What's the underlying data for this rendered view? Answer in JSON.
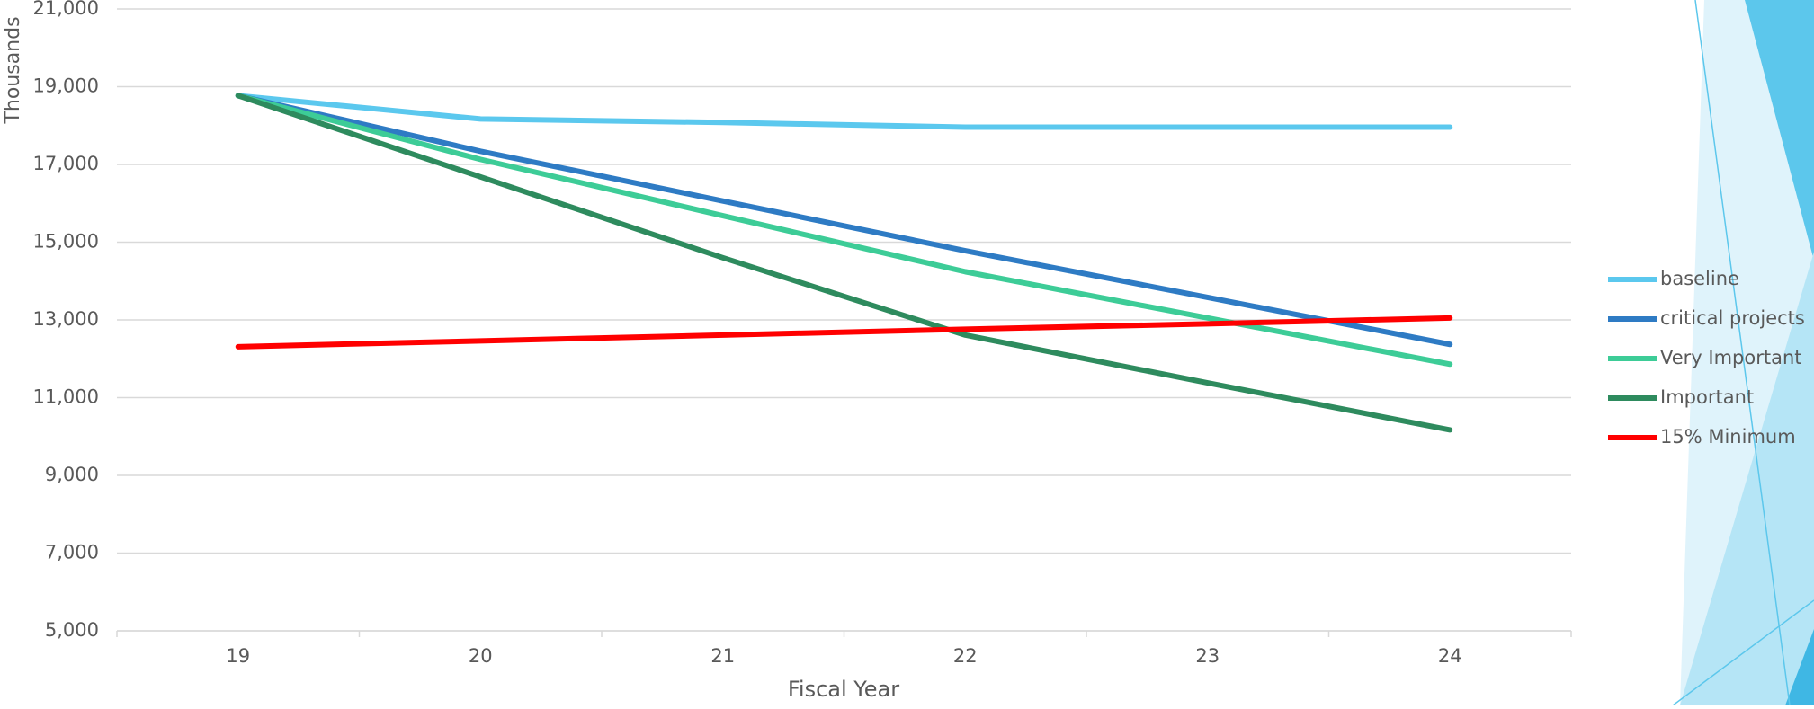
{
  "chart_data": {
    "type": "line",
    "x_label": "Fiscal Year",
    "y_label": "Thousands",
    "categories": [
      "19",
      "20",
      "21",
      "22",
      "23",
      "24"
    ],
    "series": [
      {
        "name": "baseline",
        "color": "#5bc8ee",
        "values": [
          18770,
          18170,
          18080,
          17960,
          17960,
          17960
        ]
      },
      {
        "name": "critical projects",
        "color": "#2e7bc4",
        "values": [
          18770,
          17340,
          16060,
          14780,
          13580,
          12370
        ]
      },
      {
        "name": "Very Important",
        "color": "#3dcc97",
        "values": [
          18770,
          17130,
          15680,
          14240,
          13050,
          11860
        ]
      },
      {
        "name": "Important",
        "color": "#2e8b5e",
        "values": [
          18770,
          16680,
          14600,
          12610,
          11380,
          10170
        ]
      },
      {
        "name": "15% Minimum",
        "color": "#ff0000",
        "values": [
          12310,
          12460,
          12610,
          12760,
          12900,
          13050
        ]
      }
    ],
    "ylim": [
      5000,
      21000
    ],
    "yticks": [
      {
        "value": 5000,
        "label": "5,000"
      },
      {
        "value": 7000,
        "label": "7,000"
      },
      {
        "value": 9000,
        "label": "9,000"
      },
      {
        "value": 11000,
        "label": "11,000"
      },
      {
        "value": 13000,
        "label": "13,000"
      },
      {
        "value": 15000,
        "label": "15,000"
      },
      {
        "value": 17000,
        "label": "17,000"
      },
      {
        "value": 19000,
        "label": "19,000"
      },
      {
        "value": 21000,
        "label": "21,000"
      }
    ],
    "grid": true,
    "legend": "right"
  }
}
